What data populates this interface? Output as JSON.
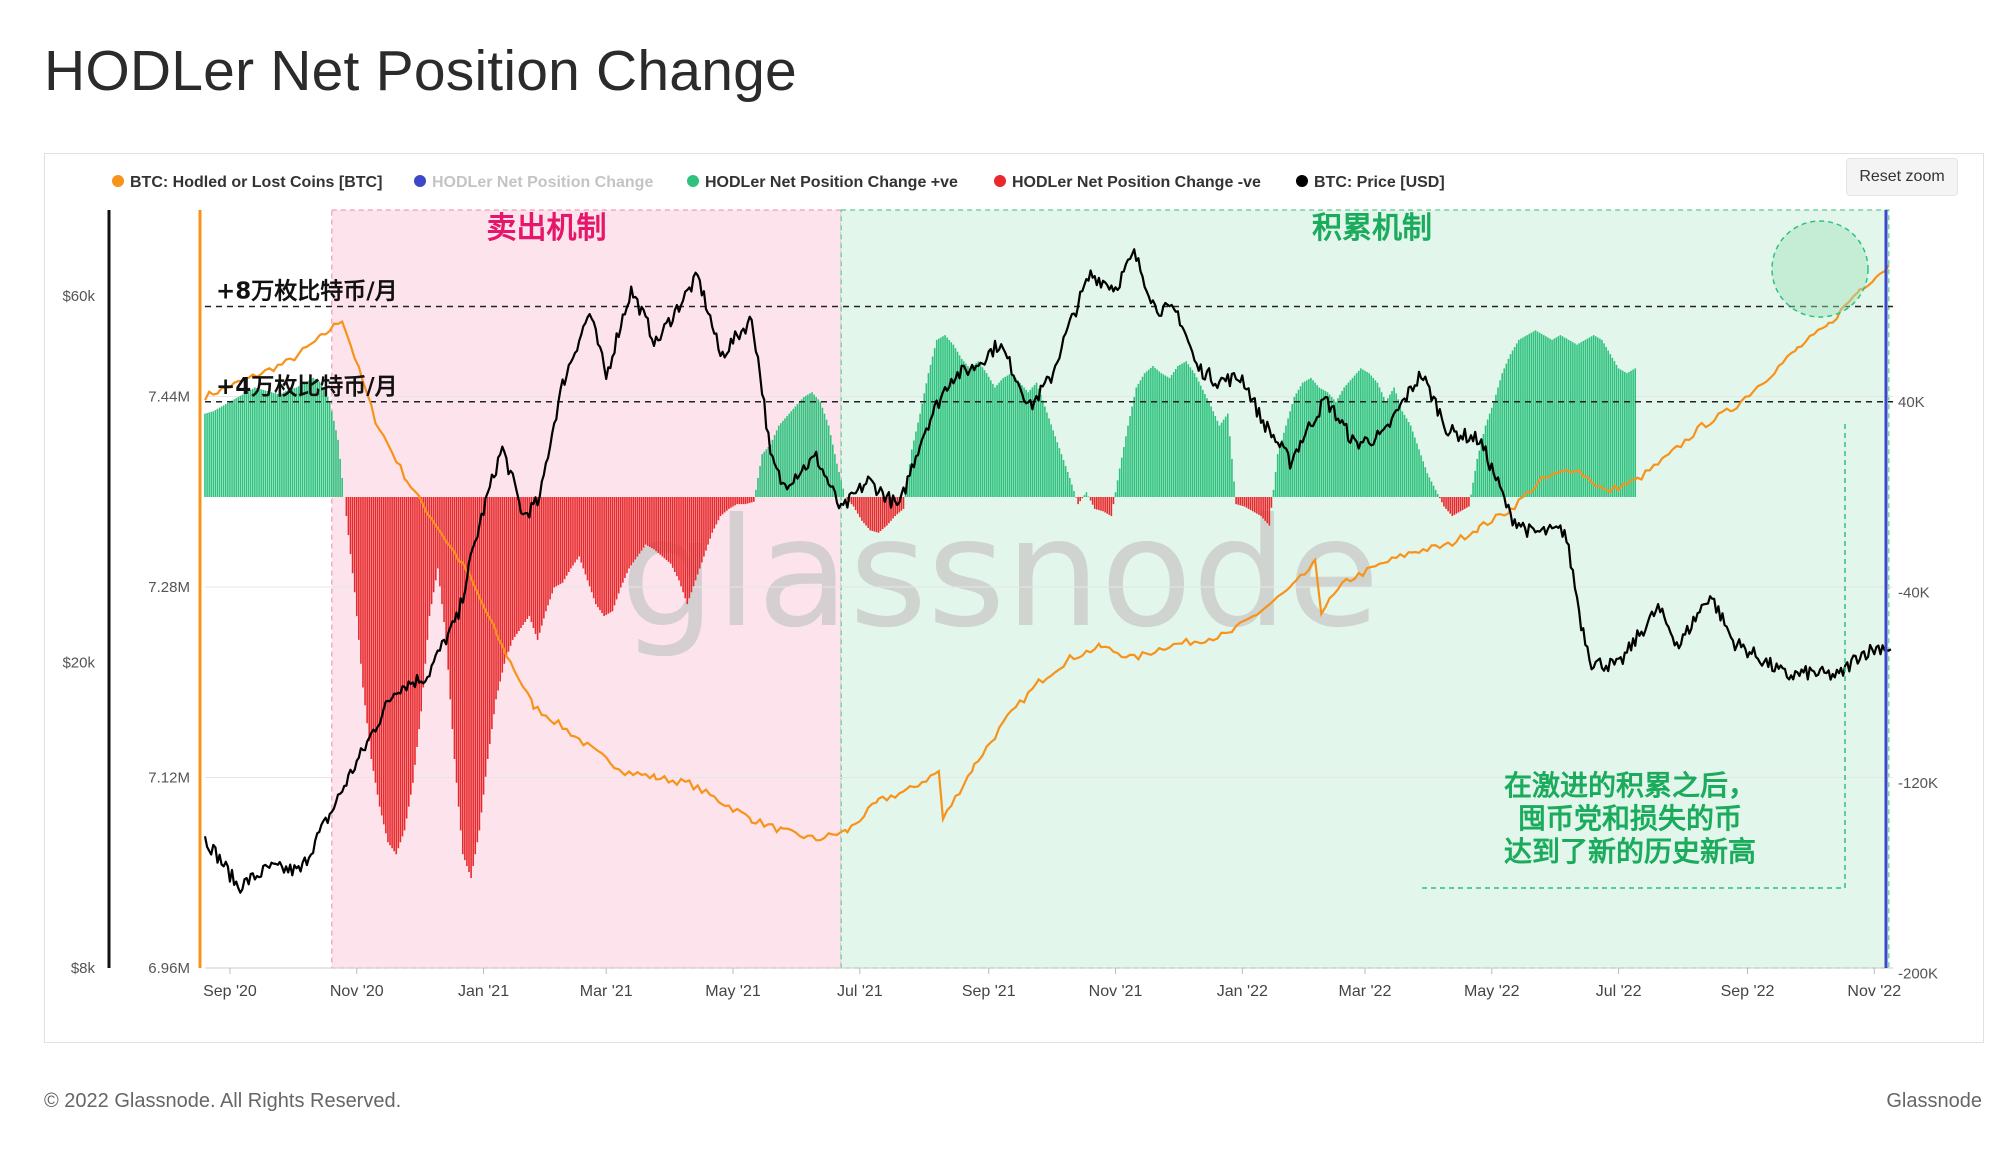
{
  "page": {
    "title": "HODLer Net Position Change",
    "reset_zoom_label": "Reset zoom",
    "footer_left": "© 2022 Glassnode. All Rights Reserved.",
    "footer_right": "Glassnode",
    "watermark": "glassnode"
  },
  "colors": {
    "hodled_line": "#f7931a",
    "net_position_neutral": "#3b48c8",
    "positive_bars": "#2ec27e",
    "negative_bars": "#e8282b",
    "price_line": "#000000",
    "distribution_zone": "#fde4ec",
    "accumulation_zone": "#e3f6ec",
    "distribution_label": "#e6166a",
    "accumulation_label": "#1aab5c"
  },
  "chart_data": {
    "type": "bar",
    "title": "HODLer Net Position Change",
    "legend": [
      {
        "name": "BTC: Hodled or Lost Coins [BTC]",
        "color": "#f7931a",
        "muted": false
      },
      {
        "name": "HODLer Net Position Change",
        "color": "#3b48c8",
        "muted": true
      },
      {
        "name": "HODLer Net Position Change +ve",
        "color": "#2ec27e",
        "muted": false
      },
      {
        "name": "HODLer Net Position Change -ve",
        "color": "#e8282b",
        "muted": false
      },
      {
        "name": "BTC: Price [USD]",
        "color": "#000000",
        "muted": false
      }
    ],
    "legend_placement": "top-left",
    "x_ticks": [
      "Sep '20",
      "Nov '20",
      "Jan '21",
      "Mar '21",
      "May '21",
      "Jul '21",
      "Sep '21",
      "Nov '21",
      "Jan '22",
      "Mar '22",
      "May '22",
      "Jul '22",
      "Sep '22",
      "Nov '22"
    ],
    "axes": {
      "price_axis": {
        "ticks": [
          "$8k",
          "$20k",
          "$60k"
        ],
        "scale": "log"
      },
      "hodled_axis": {
        "ticks": [
          "6.96M",
          "7.12M",
          "7.28M",
          "7.44M"
        ],
        "range": [
          6.96,
          7.52
        ]
      },
      "net_position_axis": {
        "ticks": [
          "-200K",
          "-120K",
          "-40K",
          "40K"
        ],
        "range": [
          -200000,
          80000
        ]
      }
    },
    "annotations": {
      "distribution_label": "卖出机制",
      "accumulation_label": "积累机制",
      "line_80k": "+8万枚比特币/月",
      "line_40k": "+4万枚比特币/月",
      "note_lines": [
        "在激进的积累之后，",
        "囤币党和损失的币",
        "达到了新的历史新高"
      ]
    },
    "net_position_change": {
      "x_start": "2020-08-20",
      "interval_days": 4,
      "values_k": [
        35,
        36,
        38,
        40,
        42,
        44,
        46,
        45,
        44,
        43,
        45,
        46,
        48,
        50,
        48,
        40,
        24,
        -8,
        -40,
        -80,
        -110,
        -130,
        -145,
        -150,
        -140,
        -120,
        -90,
        -50,
        -30,
        -60,
        -110,
        -150,
        -160,
        -140,
        -110,
        -85,
        -70,
        -60,
        -55,
        -50,
        -60,
        -48,
        -38,
        -36,
        -30,
        -25,
        -35,
        -45,
        -50,
        -48,
        -38,
        -30,
        -25,
        -20,
        -22,
        -25,
        -28,
        -35,
        -45,
        -35,
        -25,
        -15,
        -8,
        -5,
        -3,
        -3,
        -2,
        18,
        22,
        30,
        34,
        38,
        42,
        44,
        40,
        30,
        14,
        0,
        -4,
        -10,
        -14,
        -15,
        -12,
        -8,
        -5,
        20,
        35,
        52,
        66,
        68,
        64,
        58,
        54,
        57,
        52,
        46,
        50,
        52,
        48,
        44,
        48,
        38,
        28,
        18,
        8,
        -3,
        2,
        -5,
        -6,
        -8,
        12,
        30,
        46,
        52,
        55,
        52,
        50,
        55,
        57,
        52,
        45,
        38,
        30,
        35,
        -3,
        -4,
        -6,
        -8,
        -12,
        18,
        30,
        42,
        48,
        50,
        46,
        44,
        40,
        46,
        50,
        54,
        52,
        48,
        40,
        46,
        36,
        30,
        20,
        10,
        3,
        -4,
        -8,
        -6,
        -4,
        16,
        30,
        40,
        52,
        60,
        66,
        68,
        70,
        68,
        66,
        68,
        66,
        64,
        66,
        68,
        66,
        60,
        54,
        52,
        54
      ]
    },
    "hodled_or_lost_coins_m": {
      "x": [
        "2020-08-20",
        "2020-09-10",
        "2020-09-30",
        "2020-10-15",
        "2020-10-25",
        "2020-11-10",
        "2020-11-25",
        "2020-12-10",
        "2020-12-25",
        "2021-01-10",
        "2021-01-25",
        "2021-02-10",
        "2021-02-25",
        "2021-03-10",
        "2021-03-25",
        "2021-04-10",
        "2021-04-25",
        "2021-05-10",
        "2021-05-25",
        "2021-06-10",
        "2021-06-25",
        "2021-07-10",
        "2021-07-25",
        "2021-08-08",
        "2021-08-10",
        "2021-08-25",
        "2021-09-10",
        "2021-09-25",
        "2021-10-10",
        "2021-10-25",
        "2021-11-10",
        "2021-11-25",
        "2021-12-10",
        "2021-12-25",
        "2022-01-10",
        "2022-01-25",
        "2022-02-05",
        "2022-02-08",
        "2022-02-20",
        "2022-03-10",
        "2022-03-25",
        "2022-04-10",
        "2022-04-25",
        "2022-05-10",
        "2022-05-25",
        "2022-06-10",
        "2022-06-25",
        "2022-07-10",
        "2022-07-25",
        "2022-08-10",
        "2022-08-25",
        "2022-09-10",
        "2022-09-25",
        "2022-10-10",
        "2022-10-25",
        "2022-11-08"
      ],
      "values": [
        7.44,
        7.455,
        7.47,
        7.49,
        7.505,
        7.42,
        7.37,
        7.33,
        7.29,
        7.23,
        7.18,
        7.16,
        7.14,
        7.125,
        7.12,
        7.115,
        7.1,
        7.085,
        7.075,
        7.068,
        7.075,
        7.1,
        7.11,
        7.125,
        7.085,
        7.13,
        7.17,
        7.2,
        7.22,
        7.23,
        7.22,
        7.23,
        7.235,
        7.24,
        7.26,
        7.28,
        7.3,
        7.26,
        7.285,
        7.3,
        7.31,
        7.315,
        7.33,
        7.345,
        7.37,
        7.38,
        7.36,
        7.37,
        7.39,
        7.415,
        7.43,
        7.455,
        7.48,
        7.5,
        7.53,
        7.55
      ]
    },
    "price_usd": {
      "x": [
        "2020-08-20",
        "2020-09-05",
        "2020-09-20",
        "2020-10-05",
        "2020-10-20",
        "2020-11-05",
        "2020-11-20",
        "2020-12-05",
        "2020-12-20",
        "2021-01-03",
        "2021-01-10",
        "2021-01-20",
        "2021-01-28",
        "2021-02-08",
        "2021-02-21",
        "2021-03-01",
        "2021-03-13",
        "2021-03-25",
        "2021-04-14",
        "2021-04-25",
        "2021-05-10",
        "2021-05-19",
        "2021-05-25",
        "2021-06-10",
        "2021-06-22",
        "2021-07-05",
        "2021-07-20",
        "2021-08-01",
        "2021-08-14",
        "2021-08-25",
        "2021-09-06",
        "2021-09-21",
        "2021-10-01",
        "2021-10-20",
        "2021-11-01",
        "2021-11-10",
        "2021-11-20",
        "2021-12-01",
        "2021-12-10",
        "2021-12-20",
        "2022-01-01",
        "2022-01-10",
        "2022-01-24",
        "2022-02-10",
        "2022-02-24",
        "2022-03-10",
        "2022-03-28",
        "2022-04-10",
        "2022-04-25",
        "2022-05-10",
        "2022-05-20",
        "2022-06-05",
        "2022-06-13",
        "2022-06-18",
        "2022-07-01",
        "2022-07-20",
        "2022-07-30",
        "2022-08-14",
        "2022-08-25",
        "2022-09-10",
        "2022-09-20",
        "2022-10-01",
        "2022-10-15",
        "2022-10-25",
        "2022-11-05",
        "2022-11-09"
      ],
      "values": [
        11800,
        10200,
        10800,
        10700,
        12800,
        15500,
        18500,
        19200,
        23000,
        33000,
        38000,
        31000,
        32500,
        46000,
        57000,
        47000,
        61000,
        52000,
        63500,
        50000,
        56000,
        37000,
        34000,
        37000,
        31500,
        34500,
        31800,
        40000,
        47000,
        48500,
        52000,
        43000,
        47000,
        64000,
        61500,
        68000,
        58000,
        57000,
        48500,
        46500,
        47000,
        41500,
        36500,
        44000,
        38500,
        39500,
        47500,
        40000,
        39000,
        31000,
        29500,
        29700,
        22500,
        20000,
        19800,
        23500,
        21000,
        24500,
        21300,
        20000,
        19200,
        19400,
        19200,
        20500,
        21000,
        20800
      ]
    }
  }
}
